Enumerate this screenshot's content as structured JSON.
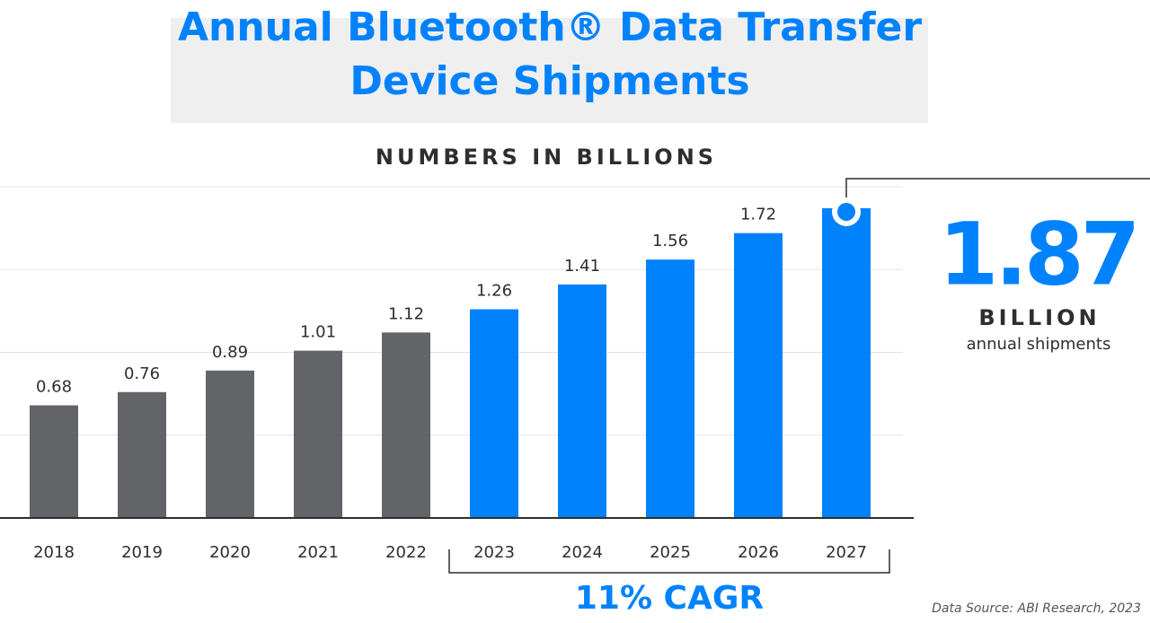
{
  "chart_data": {
    "type": "bar",
    "title": "Annual Bluetooth® Data Transfer Device Shipments",
    "subtitle": "NUMBERS IN BILLIONS",
    "categories": [
      "2018",
      "2019",
      "2020",
      "2021",
      "2022",
      "2023",
      "2024",
      "2025",
      "2026",
      "2027"
    ],
    "values": [
      0.68,
      0.76,
      0.89,
      1.01,
      1.12,
      1.26,
      1.41,
      1.56,
      1.72,
      1.87
    ],
    "colors": [
      "#636467",
      "#636467",
      "#636467",
      "#636467",
      "#636467",
      "#0082fc",
      "#0082fc",
      "#0082fc",
      "#0082fc",
      "#0082fc"
    ],
    "ylim": [
      0,
      2
    ],
    "yticks": [
      0,
      0.5,
      1,
      1.5,
      2
    ],
    "grid": true,
    "callout": {
      "unit": "BILLION",
      "text": "annual shipments"
    },
    "cagr": "11% CAGR",
    "source": "Data Source: ABI Research, 2023"
  }
}
